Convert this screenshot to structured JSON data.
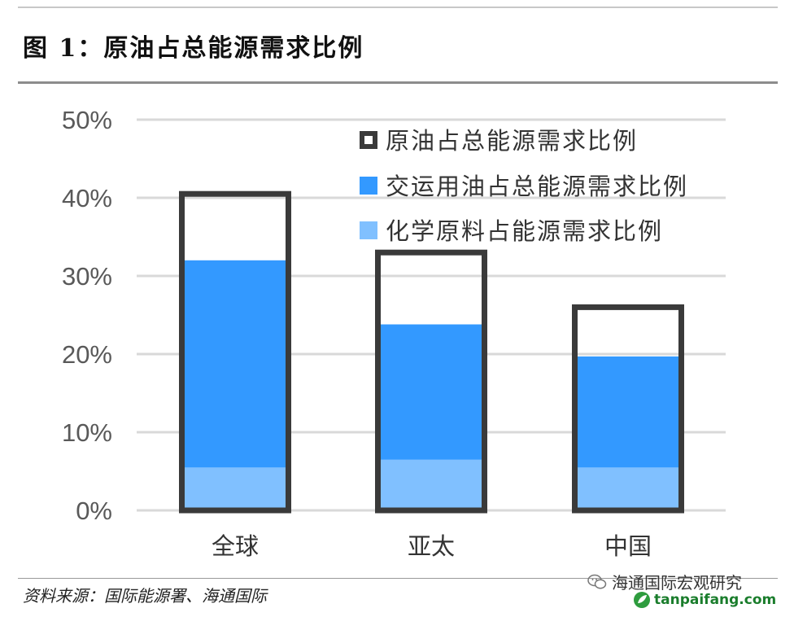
{
  "header": {
    "title": "图 1：原油占总能源需求比例"
  },
  "footer": {
    "source": "资料来源：国际能源署、海通国际",
    "wechat_account": "海通国际宏观研究",
    "website": "tanpaifang.com"
  },
  "colors": {
    "crude_outline": "#3a3a3a",
    "transport": "#3399ff",
    "chemical": "#80c0ff",
    "grid": "#d9d9d9"
  },
  "chart_data": {
    "type": "bar",
    "categories": [
      "全球",
      "亚太",
      "中国"
    ],
    "series": [
      {
        "name": "原油占总能源需求比例",
        "values": [
          40.5,
          33.0,
          26.0
        ]
      },
      {
        "name": "交运用油占总能源需求比例",
        "values": [
          32.0,
          23.8,
          19.7
        ]
      },
      {
        "name": "化学原料占能源需求比例",
        "values": [
          5.5,
          6.5,
          5.5
        ]
      }
    ],
    "yticks": [
      "0%",
      "10%",
      "20%",
      "30%",
      "40%",
      "50%"
    ],
    "ylim": [
      0,
      50
    ],
    "grid": true,
    "legend_position": "top-right"
  }
}
